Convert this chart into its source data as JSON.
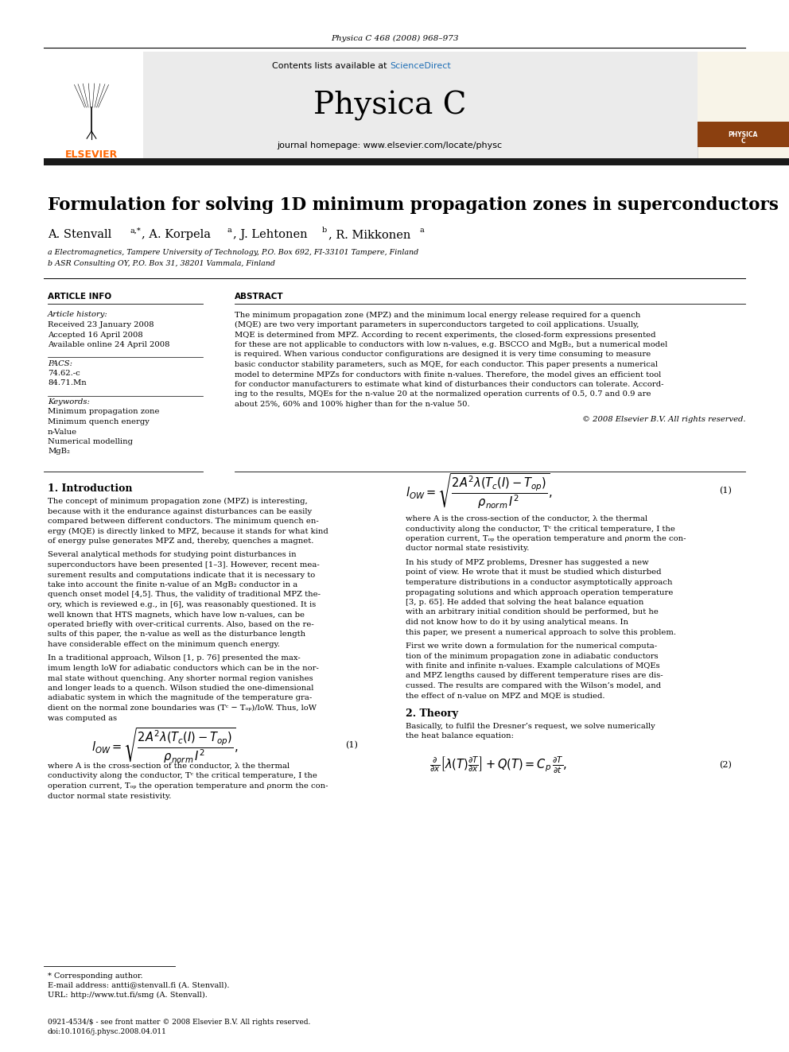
{
  "page_title": "Physica C 468 (2008) 968–973",
  "journal_name": "Physica C",
  "journal_homepage": "journal homepage: www.elsevier.com/locate/physc",
  "contents_available": "Contents lists available at ScienceDirect",
  "paper_title": "Formulation for solving 1D minimum propagation zones in superconductors",
  "affil_a": "a Electromagnetics, Tampere University of Technology, P.O. Box 692, FI-33101 Tampere, Finland",
  "affil_b": "b ASR Consulting OY, P.O. Box 31, 38201 Vammala, Finland",
  "section_article_info": "ARTICLE INFO",
  "article_history_label": "Article history:",
  "received": "Received 23 January 2008",
  "accepted": "Accepted 16 April 2008",
  "available": "Available online 24 April 2008",
  "pacs_label": "PACS:",
  "pacs1": "74.62.-c",
  "pacs2": "84.71.Mn",
  "keywords_label": "Keywords:",
  "kw1": "Minimum propagation zone",
  "kw2": "Minimum quench energy",
  "kw3": "n-Value",
  "kw4": "Numerical modelling",
  "kw5": "MgB₂",
  "section_abstract": "ABSTRACT",
  "abstract_lines": [
    "The minimum propagation zone (MPZ) and the minimum local energy release required for a quench",
    "(MQE) are two very important parameters in superconductors targeted to coil applications. Usually,",
    "MQE is determined from MPZ. According to recent experiments, the closed-form expressions presented",
    "for these are not applicable to conductors with low n-values, e.g. BSCCO and MgB₂, but a numerical model",
    "is required. When various conductor configurations are designed it is very time consuming to measure",
    "basic conductor stability parameters, such as MQE, for each conductor. This paper presents a numerical",
    "model to determine MPZs for conductors with finite n-values. Therefore, the model gives an efficient tool",
    "for conductor manufacturers to estimate what kind of disturbances their conductors can tolerate. Accord-",
    "ing to the results, MQEs for the n-value 20 at the normalized operation currents of 0.5, 0.7 and 0.9 are",
    "about 25%, 60% and 100% higher than for the n-value 50."
  ],
  "copyright": "© 2008 Elsevier B.V. All rights reserved.",
  "section1_title": "1. Introduction",
  "intro1_lines": [
    "The concept of minimum propagation zone (MPZ) is interesting,",
    "because with it the endurance against disturbances can be easily",
    "compared between different conductors. The minimum quench en-",
    "ergy (MQE) is directly linked to MPZ, because it stands for what kind",
    "of energy pulse generates MPZ and, thereby, quenches a magnet."
  ],
  "intro2_lines": [
    "Several analytical methods for studying point disturbances in",
    "superconductors have been presented [1–3]. However, recent mea-",
    "surement results and computations indicate that it is necessary to",
    "take into account the finite n-value of an MgB₂ conductor in a",
    "quench onset model [4,5]. Thus, the validity of traditional MPZ the-",
    "ory, which is reviewed e.g., in [6], was reasonably questioned. It is",
    "well known that HTS magnets, which have low n-values, can be",
    "operated briefly with over-critical currents. Also, based on the re-",
    "sults of this paper, the n-value as well as the disturbance length",
    "have considerable effect on the minimum quench energy."
  ],
  "intro3_lines": [
    "In a traditional approach, Wilson [1, p. 76] presented the max-",
    "imum length lᴏW for adiabatic conductors which can be in the nor-",
    "mal state without quenching. Any shorter normal region vanishes",
    "and longer leads to a quench. Wilson studied the one-dimensional",
    "adiabatic system in which the magnitude of the temperature gra-",
    "dient on the normal zone boundaries was (Tᶜ − Tₒₚ)/lᴏW. Thus, lᴏW",
    "was computed as"
  ],
  "eq1_label": "(1)",
  "eq1_desc_lines": [
    "where A is the cross-section of the conductor, λ the thermal",
    "conductivity along the conductor, Tᶜ the critical temperature, I the",
    "operation current, Tₒₚ the operation temperature and ρnorm the con-",
    "ductor normal state resistivity."
  ],
  "right1_lines": [
    "In his study of MPZ problems, Dresner has suggested a new",
    "point of view. He wrote that it must be studied which disturbed",
    "temperature distributions in a conductor asymptotically approach",
    "propagating solutions and which approach operation temperature",
    "[3, p. 65]. He added that solving the heat balance equation",
    "with an arbitrary initial condition should be performed, but he",
    "did not know how to do it by using analytical means. In",
    "this paper, we present a numerical approach to solve this problem."
  ],
  "right2_lines": [
    "First we write down a formulation for the numerical computa-",
    "tion of the minimum propagation zone in adiabatic conductors",
    "with finite and infinite n-values. Example calculations of MQEs",
    "and MPZ lengths caused by different temperature rises are dis-",
    "cussed. The results are compared with the Wilson’s model, and",
    "the effect of n-value on MPZ and MQE is studied."
  ],
  "section2_title": "2. Theory",
  "theory1_lines": [
    "Basically, to fulfil the Dresner’s request, we solve numerically",
    "the heat balance equation:"
  ],
  "eq2_label": "(2)",
  "footnote_star": "* Corresponding author.",
  "footnote_email": "E-mail address: antti@stenvall.fi (A. Stenvall).",
  "footnote_url": "URL: http://www.tut.fi/smg (A. Stenvall).",
  "footer_left": "0921-4534/$ - see front matter © 2008 Elsevier B.V. All rights reserved.",
  "footer_doi": "doi:10.1016/j.physc.2008.04.011",
  "elsevier_color": "#FF6600",
  "sciencedirect_color": "#1E6EB5",
  "header_bg": "#EBEBEB",
  "black_bar_color": "#1A1A1A",
  "page_bg": "#FFFFFF",
  "text_color": "#000000"
}
